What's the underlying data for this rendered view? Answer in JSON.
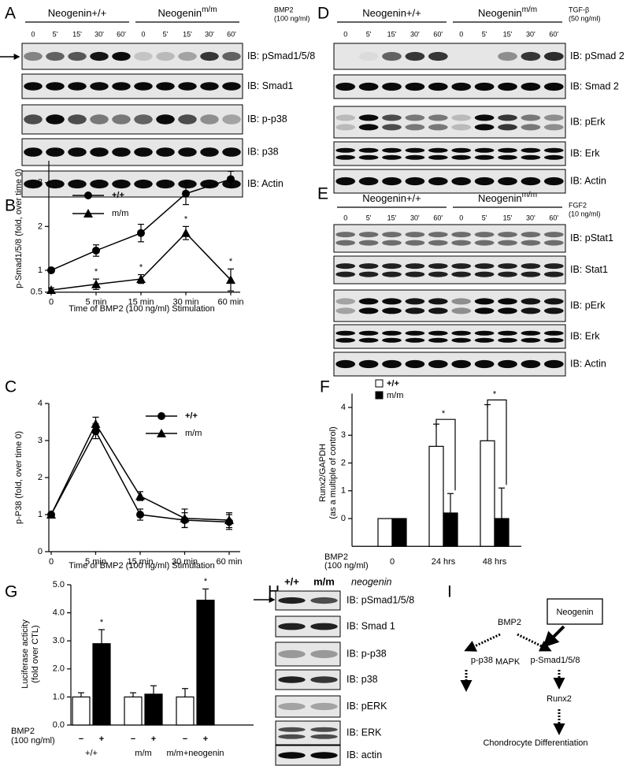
{
  "blots": [
    {
      "label": "A",
      "groups": [
        {
          "name": "Neogenin+/+"
        },
        {
          "name": "Neogenin",
          "sup": "m/m"
        }
      ],
      "treatment": "BMP2",
      "dose": "(100 ng/ml)",
      "lanes": [
        "0",
        "5'",
        "15'",
        "30'",
        "60'",
        "0",
        "5'",
        "15'",
        "30'",
        "60'"
      ],
      "rows": [
        "IB: pSmad1/5/8",
        "IB: Smad1",
        "IB: p-p38",
        "IB: p38",
        "IB: Actin"
      ]
    },
    {
      "label": "D",
      "groups": [
        {
          "name": "Neogenin+/+"
        },
        {
          "name": "Neogenin",
          "sup": "m/m"
        }
      ],
      "treatment": "TGF-β",
      "dose": "(50 ng/ml)",
      "lanes": [
        "0",
        "5'",
        "15'",
        "30'",
        "60'",
        "0",
        "5'",
        "15'",
        "30'",
        "60'"
      ],
      "rows": [
        "IB: pSmad 2",
        "IB: Smad 2",
        "IB: pErk",
        "IB: Erk",
        "IB: Actin"
      ]
    },
    {
      "label": "E",
      "groups": [
        {
          "name": "Neogenin+/+"
        },
        {
          "name": "Neogenin",
          "sup": "m/m"
        }
      ],
      "treatment": "FGF2",
      "dose": "(10 ng/ml)",
      "lanes": [
        "0",
        "5'",
        "15'",
        "30'",
        "60'",
        "0",
        "5'",
        "15'",
        "30'",
        "60'"
      ],
      "rows": [
        "IB: pStat1",
        "IB: Stat1",
        "IB: pErk",
        "IB: Erk",
        "IB: Actin"
      ]
    }
  ],
  "blot_h": {
    "label": "H",
    "lanes": [
      "+/+",
      "m/m"
    ],
    "gene": "neogenin",
    "rows": [
      "IB: pSmad1/5/8",
      "IB: Smad 1",
      "IB: p-p38",
      "IB: p38",
      "IB: pERK",
      "IB: ERK",
      "IB: actin"
    ]
  },
  "diagram": {
    "label": "I",
    "nodes": [
      "BMP2",
      "Neogenin",
      "p-p38",
      "MAPK",
      "p-Smad1/5/8",
      "Runx2",
      "Chondrocyte Differentiation"
    ]
  },
  "chart_data": [
    {
      "label": "B",
      "type": "line",
      "categories": [
        "0",
        "5 min",
        "15 min",
        "30 min",
        "60 min"
      ],
      "series": [
        {
          "name": "+/+",
          "color": "#000000",
          "marker": "circle",
          "values": [
            1.0,
            1.45,
            1.85,
            2.75,
            3.08
          ],
          "errors": [
            0.05,
            0.13,
            0.2,
            0.25,
            0.18
          ]
        },
        {
          "name": "m/m",
          "color": "#000000",
          "marker": "triangle",
          "values": [
            0.55,
            0.68,
            0.8,
            1.85,
            0.78
          ],
          "errors": [
            0.05,
            0.12,
            0.1,
            0.15,
            0.25
          ]
        }
      ],
      "annotations": [
        null,
        "*",
        "*",
        "*",
        "*"
      ],
      "ylim": [
        0.5,
        3.5
      ],
      "yticks": [
        0.5,
        1,
        2,
        3
      ],
      "ylabel": [
        "p-Smad1/5/8 (fold, over time 0)"
      ],
      "xlabel": [
        "Time of BMP2 (100 ng/ml) Stimulation"
      ]
    },
    {
      "label": "C",
      "type": "line",
      "categories": [
        "0",
        "5 min",
        "15 min",
        "30 min",
        "60 min"
      ],
      "series": [
        {
          "name": "+/+",
          "color": "#000000",
          "marker": "circle",
          "values": [
            1.0,
            3.25,
            1.0,
            0.85,
            0.8
          ],
          "errors": [
            0.05,
            0.2,
            0.15,
            0.2,
            0.2
          ]
        },
        {
          "name": "m/m",
          "color": "#000000",
          "marker": "triangle",
          "values": [
            1.0,
            3.45,
            1.5,
            0.9,
            0.85
          ],
          "errors": [
            0.05,
            0.18,
            0.12,
            0.25,
            0.2
          ]
        }
      ],
      "ylim": [
        0,
        4
      ],
      "yticks": [
        0,
        1,
        2,
        3,
        4
      ],
      "ylabel": [
        "p-P38 (fold, over time 0)"
      ],
      "xlabel": [
        "Time of BMP2 (100 ng/ml) Stimulation"
      ]
    },
    {
      "label": "F",
      "type": "bar",
      "categories": [
        "0",
        "24 hrs",
        "48 hrs"
      ],
      "series": [
        {
          "name": "+/+",
          "color": "#ffffff",
          "values": [
            0,
            2.6,
            2.8
          ],
          "errors": [
            null,
            0.8,
            1.3
          ]
        },
        {
          "name": "m/m",
          "color": "#000000",
          "values": [
            0,
            0.2,
            0.0
          ],
          "errors": [
            null,
            0.7,
            1.1
          ]
        }
      ],
      "significance": [
        null,
        "*",
        "*"
      ],
      "ylim": [
        -1,
        4.5
      ],
      "yticks": [
        0,
        1,
        2,
        3,
        4
      ],
      "ylabel": [
        "Runx2/GAPDH",
        "(as a multiple of control)"
      ],
      "xlabel": [
        "BMP2",
        "(100 ng/ml)"
      ]
    },
    {
      "label": "G",
      "type": "bar",
      "categories": [
        "+/+",
        "m/m",
        "m/m+neogenin"
      ],
      "series": [
        {
          "name": "−",
          "color": "#ffffff",
          "values": [
            1.0,
            1.0,
            1.0
          ],
          "errors": [
            0.15,
            0.15,
            0.3
          ]
        },
        {
          "name": "+",
          "color": "#000000",
          "values": [
            2.9,
            1.1,
            4.45
          ],
          "errors": [
            0.5,
            0.3,
            0.4
          ]
        }
      ],
      "annotations": [
        "*",
        null,
        "*"
      ],
      "ylim": [
        0,
        5
      ],
      "yticks": [
        {
          "value": 0,
          "label": "0.0"
        },
        {
          "value": 1,
          "label": "1.0"
        },
        {
          "value": 2,
          "label": "2.0"
        },
        {
          "value": 3,
          "label": "3.0"
        },
        {
          "value": 4,
          "label": "4.0"
        },
        {
          "value": 5,
          "label": "5.0"
        }
      ],
      "ylabel": [
        "Luciferase acticity",
        "(fold over CTL)"
      ],
      "xlabel": [
        "BMP2",
        "(100 ng/ml)"
      ]
    }
  ]
}
